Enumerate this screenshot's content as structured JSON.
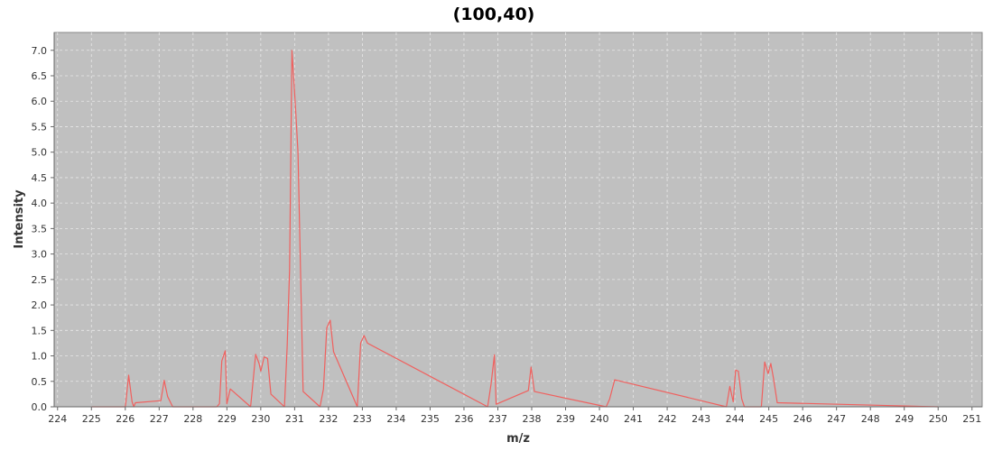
{
  "chart_data": {
    "type": "line",
    "title": "(100,40)",
    "xlabel": "m/z",
    "ylabel": "Intensity",
    "xlim": [
      223.9,
      251.3
    ],
    "ylim": [
      0,
      7.35
    ],
    "x_ticks": [
      224,
      225,
      226,
      227,
      228,
      229,
      230,
      231,
      232,
      233,
      234,
      235,
      236,
      237,
      238,
      239,
      240,
      241,
      242,
      243,
      244,
      245,
      246,
      247,
      248,
      249,
      250,
      251
    ],
    "x_tick_labels": [
      "224",
      "225",
      "226",
      "227",
      "228",
      "229",
      "230",
      "231",
      "232",
      "233",
      "234",
      "235",
      "236",
      "237",
      "238",
      "239",
      "240",
      "241",
      "242",
      "243",
      "244",
      "245",
      "246",
      "247",
      "248",
      "249",
      "250",
      "251"
    ],
    "y_ticks": [
      0,
      0.5,
      1,
      1.5,
      2,
      2.5,
      3,
      3.5,
      4,
      4.5,
      5,
      5.5,
      6,
      6.5,
      7
    ],
    "y_tick_labels": [
      "0.0",
      "0.5",
      "1.0",
      "1.5",
      "2.0",
      "2.5",
      "3.0",
      "3.5",
      "4.0",
      "4.5",
      "5.0",
      "5.5",
      "6.0",
      "6.5",
      "7.0"
    ],
    "grid": true,
    "colors": {
      "series": "#f0605e",
      "plot_background": "#c0c0c0",
      "grid": "#e8e8e8"
    },
    "series": [
      {
        "x": [
          225.0,
          226.0,
          226.02,
          226.1,
          226.2,
          226.25,
          226.3,
          227.05,
          227.15,
          227.25,
          227.4,
          228.7,
          228.78,
          228.85,
          228.95,
          229.0,
          229.1,
          229.7,
          229.85,
          229.95,
          230.0,
          230.1,
          230.2,
          230.3,
          230.7,
          230.78,
          230.85,
          230.92,
          231.02,
          231.1,
          231.25,
          231.75,
          231.85,
          231.95,
          232.05,
          232.15,
          232.85,
          232.95,
          233.05,
          233.15,
          236.7,
          236.8,
          236.9,
          236.95,
          237.9,
          237.98,
          238.08,
          240.2,
          240.3,
          240.45,
          243.75,
          243.85,
          243.95,
          244.02,
          244.1,
          244.2,
          244.28,
          244.78,
          244.88,
          244.98,
          245.06,
          245.14,
          245.25,
          250.0
        ],
        "y": [
          0,
          0,
          0.1,
          0.62,
          0.1,
          0,
          0.08,
          0.12,
          0.52,
          0.2,
          0,
          0,
          0.06,
          0.9,
          1.1,
          0.06,
          0.35,
          0,
          1.03,
          0.85,
          0.7,
          0.98,
          0.95,
          0.25,
          0,
          1.18,
          2.7,
          7.0,
          5.95,
          5.0,
          0.3,
          0,
          0.35,
          1.55,
          1.7,
          1.08,
          0,
          1.25,
          1.4,
          1.25,
          0,
          0.45,
          1.02,
          0.05,
          0.32,
          0.78,
          0.3,
          0,
          0.15,
          0.53,
          0,
          0.4,
          0.1,
          0.72,
          0.7,
          0.16,
          0,
          0,
          0.88,
          0.65,
          0.85,
          0.55,
          0.08,
          0
        ]
      }
    ]
  }
}
